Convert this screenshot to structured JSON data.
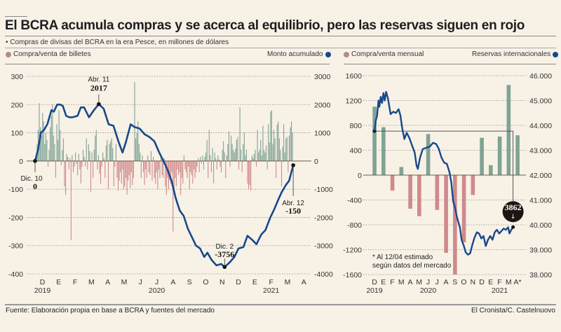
{
  "title": "El BCRA acumula compras y se acerca al equilibrio, pero las reservas siguen en rojo",
  "subtitle": "• Compras de divisas del BCRA en la era Pesce, en millones de dólares",
  "colors": {
    "positive_bar": "#7fa394",
    "negative_bar": "#cf8a8b",
    "line": "#17498a",
    "legend_bar_dot": "#b08c8c",
    "legend_line_dot": "#17498a",
    "background": "#f8f1e6"
  },
  "left_panel": {
    "legend_left": "Compra/venta de billetes",
    "legend_right": "Monto acumulado"
  },
  "right_panel": {
    "legend_left": "Compra/venta mensual",
    "legend_right": "Reservas internacionales"
  },
  "footer": {
    "source": "Fuente:  Elaboración propia en base a BCRA y fuentes del mercado",
    "credit": "El Cronista/C. Castelnuovo"
  },
  "chart_data": [
    {
      "type": "bar+line",
      "title": "Compra/venta de billetes y monto acumulado",
      "left_axis": {
        "ticks": [
          300,
          200,
          100,
          0,
          -100,
          -200,
          -300,
          -400
        ],
        "ylim": [
          -400,
          300
        ],
        "label": "Compra/venta de billetes"
      },
      "right_axis": {
        "ticks": [
          3000,
          2000,
          1000,
          0,
          -1000,
          -2000,
          -3000,
          -4000
        ],
        "ylim": [
          -4000,
          3000
        ],
        "label": "Monto acumulado"
      },
      "x_month_labels": [
        "D",
        "E",
        "F",
        "M",
        "A",
        "M",
        "J",
        "J",
        "A",
        "S",
        "O",
        "N",
        "D",
        "E",
        "F",
        "M",
        "A"
      ],
      "x_year_labels": [
        {
          "label": "2019",
          "month_index": 0
        },
        {
          "label": "2020",
          "month_index": 7
        },
        {
          "label": "2021",
          "month_index": 14
        }
      ],
      "grid": true,
      "bars_daily": [
        60,
        110,
        205,
        120,
        90,
        170,
        140,
        60,
        100,
        75,
        -20,
        40,
        120,
        160,
        200,
        90,
        60,
        -60,
        130,
        75,
        180,
        110,
        -15,
        40,
        80,
        -90,
        -120,
        25,
        15,
        -30,
        10,
        -280,
        20,
        -40,
        -20,
        30,
        -10,
        -50,
        25,
        -30,
        -80,
        -20,
        40,
        15,
        -20,
        80,
        -30,
        60,
        35,
        -110,
        30,
        -60,
        40,
        90,
        110,
        -30,
        20,
        -45,
        -80,
        -20,
        30,
        10,
        -60,
        55,
        75,
        -100,
        60,
        70,
        80,
        45,
        -90,
        -20,
        60,
        -60,
        -105,
        -70,
        -40,
        -80,
        -30,
        -100,
        -90,
        -60,
        -120,
        -70,
        -50,
        -95,
        -40,
        -85,
        -60,
        280,
        80,
        100,
        140,
        60,
        30,
        -60,
        20,
        -40,
        -85,
        -30,
        -60,
        20,
        -40,
        -50,
        35,
        -70,
        15,
        -60,
        -80,
        -40,
        -100,
        -30,
        -60,
        20,
        -50,
        -60,
        10,
        -90,
        -120,
        -60,
        -100,
        -70,
        -80,
        -40,
        -250,
        -120,
        -60,
        -90,
        -30,
        -50,
        -40,
        -120,
        -60,
        -80,
        20,
        -30,
        -40,
        -60,
        -20,
        -100,
        -40,
        -50,
        -80,
        -30,
        -60,
        -40,
        -20,
        10,
        -40,
        15,
        -10,
        20,
        -30,
        15,
        30,
        75,
        -60,
        110,
        20,
        -40,
        45,
        -80,
        30,
        10,
        -30,
        20,
        5,
        -20,
        -40,
        40,
        70,
        30,
        -60,
        20,
        60,
        105,
        -20,
        90,
        60,
        40,
        30,
        45,
        75,
        85,
        -30,
        190,
        40,
        -40,
        60,
        100,
        20,
        40,
        -80,
        -100,
        -85,
        -105,
        20,
        10,
        25,
        40,
        -20,
        110,
        30,
        40,
        75,
        20,
        125,
        40,
        30,
        55,
        -30,
        130,
        65,
        175,
        180,
        60,
        110,
        80,
        -60,
        130,
        140,
        80,
        40,
        -90,
        50,
        130,
        30,
        80,
        85,
        -40,
        90,
        120,
        140,
        100
      ],
      "accumulated_line": [
        {
          "month_pos": 0.0,
          "value": 0
        },
        {
          "month_pos": 0.2,
          "value": 450
        },
        {
          "month_pos": 0.35,
          "value": 1000
        },
        {
          "month_pos": 0.55,
          "value": 1100
        },
        {
          "month_pos": 0.75,
          "value": 1300
        },
        {
          "month_pos": 1.0,
          "value": 1800
        },
        {
          "month_pos": 1.15,
          "value": 1750
        },
        {
          "month_pos": 1.35,
          "value": 2000
        },
        {
          "month_pos": 1.55,
          "value": 2000
        },
        {
          "month_pos": 1.7,
          "value": 1950
        },
        {
          "month_pos": 1.9,
          "value": 1600
        },
        {
          "month_pos": 2.1,
          "value": 1550
        },
        {
          "month_pos": 2.3,
          "value": 1550
        },
        {
          "month_pos": 2.6,
          "value": 1600
        },
        {
          "month_pos": 2.8,
          "value": 1900
        },
        {
          "month_pos": 3.0,
          "value": 1900
        },
        {
          "month_pos": 3.3,
          "value": 1550
        },
        {
          "month_pos": 3.6,
          "value": 1800
        },
        {
          "month_pos": 3.9,
          "value": 2017
        },
        {
          "month_pos": 4.2,
          "value": 1850
        },
        {
          "month_pos": 4.5,
          "value": 1300
        },
        {
          "month_pos": 4.8,
          "value": 1250
        },
        {
          "month_pos": 5.1,
          "value": 700
        },
        {
          "month_pos": 5.35,
          "value": 300
        },
        {
          "month_pos": 5.55,
          "value": 650
        },
        {
          "month_pos": 5.85,
          "value": 1300
        },
        {
          "month_pos": 6.1,
          "value": 1200
        },
        {
          "month_pos": 6.4,
          "value": 1150
        },
        {
          "month_pos": 6.7,
          "value": 950
        },
        {
          "month_pos": 7.0,
          "value": 850
        },
        {
          "month_pos": 7.3,
          "value": 700
        },
        {
          "month_pos": 7.6,
          "value": 300
        },
        {
          "month_pos": 7.9,
          "value": -50
        },
        {
          "month_pos": 8.1,
          "value": -300
        },
        {
          "month_pos": 8.35,
          "value": -700
        },
        {
          "month_pos": 8.6,
          "value": -1300
        },
        {
          "month_pos": 8.85,
          "value": -1750
        },
        {
          "month_pos": 9.1,
          "value": -1950
        },
        {
          "month_pos": 9.35,
          "value": -2400
        },
        {
          "month_pos": 9.6,
          "value": -2700
        },
        {
          "month_pos": 9.85,
          "value": -3000
        },
        {
          "month_pos": 10.1,
          "value": -3100
        },
        {
          "month_pos": 10.35,
          "value": -3400
        },
        {
          "month_pos": 10.55,
          "value": -3250
        },
        {
          "month_pos": 10.8,
          "value": -3500
        },
        {
          "month_pos": 11.1,
          "value": -3700
        },
        {
          "month_pos": 11.4,
          "value": -3650
        },
        {
          "month_pos": 11.6,
          "value": -3756
        },
        {
          "month_pos": 11.9,
          "value": -3600
        },
        {
          "month_pos": 12.2,
          "value": -3400
        },
        {
          "month_pos": 12.45,
          "value": -3100
        },
        {
          "month_pos": 12.75,
          "value": -3050
        },
        {
          "month_pos": 13.0,
          "value": -2650
        },
        {
          "month_pos": 13.3,
          "value": -2800
        },
        {
          "month_pos": 13.55,
          "value": -2950
        },
        {
          "month_pos": 13.85,
          "value": -2600
        },
        {
          "month_pos": 14.1,
          "value": -2450
        },
        {
          "month_pos": 14.4,
          "value": -2000
        },
        {
          "month_pos": 14.65,
          "value": -1700
        },
        {
          "month_pos": 14.9,
          "value": -1350
        },
        {
          "month_pos": 15.1,
          "value": -1100
        },
        {
          "month_pos": 15.35,
          "value": -850
        },
        {
          "month_pos": 15.55,
          "value": -700
        },
        {
          "month_pos": 15.8,
          "value": -150
        }
      ],
      "annotations": [
        {
          "label": "Dic. 10",
          "value_label": "0",
          "month_pos": 0.0,
          "value": 0
        },
        {
          "label": "Abr. 11",
          "value_label": "2017",
          "month_pos": 3.9,
          "value": 2017
        },
        {
          "label": "Dic. 2",
          "value_label": "-3756",
          "month_pos": 11.6,
          "value": -3756
        },
        {
          "label": "Abr. 12",
          "value_label": "-150",
          "month_pos": 15.8,
          "value": -150
        }
      ]
    },
    {
      "type": "bar+line",
      "title": "Compra/venta mensual y reservas internacionales",
      "left_axis": {
        "ticks": [
          1600,
          1200,
          800,
          400,
          0,
          -400,
          -800,
          -1200,
          -1600
        ],
        "ylim": [
          -1600,
          1600
        ],
        "label": "Compra/venta mensual"
      },
      "right_axis": {
        "ticks": [
          "46.000",
          "45.000",
          "44.000",
          "43.000",
          "42.000",
          "41.000",
          "40.000",
          "39.000",
          "38.000"
        ],
        "ylim": [
          38000,
          46000
        ],
        "label": "Reservas internacionales"
      },
      "categories": [
        "D",
        "E",
        "F",
        "M",
        "A",
        "M",
        "J",
        "J",
        "A",
        "S",
        "O",
        "N",
        "D",
        "E",
        "F",
        "M",
        "A*"
      ],
      "x_year_labels": [
        {
          "label": "2019",
          "month_index": 0
        },
        {
          "label": "2020",
          "month_index": 6
        },
        {
          "label": "2021",
          "month_index": 14
        }
      ],
      "values": [
        1100,
        770,
        -250,
        130,
        -540,
        -660,
        660,
        -560,
        -1250,
        -1600,
        -1080,
        -320,
        600,
        160,
        620,
        1450,
        640
      ],
      "reserves_line": [
        {
          "month_pos": 0.0,
          "value": 43770
        },
        {
          "month_pos": 0.15,
          "value": 44200
        },
        {
          "month_pos": 0.3,
          "value": 44400
        },
        {
          "month_pos": 0.45,
          "value": 45000
        },
        {
          "month_pos": 0.55,
          "value": 44750
        },
        {
          "month_pos": 0.7,
          "value": 45150
        },
        {
          "month_pos": 0.85,
          "value": 44900
        },
        {
          "month_pos": 1.0,
          "value": 45300
        },
        {
          "month_pos": 1.15,
          "value": 45000
        },
        {
          "month_pos": 1.3,
          "value": 45350
        },
        {
          "month_pos": 1.5,
          "value": 45100
        },
        {
          "month_pos": 1.8,
          "value": 44450
        },
        {
          "month_pos": 2.1,
          "value": 44550
        },
        {
          "month_pos": 2.4,
          "value": 44500
        },
        {
          "month_pos": 2.7,
          "value": 44650
        },
        {
          "month_pos": 2.9,
          "value": 44400
        },
        {
          "month_pos": 3.1,
          "value": 43900
        },
        {
          "month_pos": 3.35,
          "value": 43450
        },
        {
          "month_pos": 3.6,
          "value": 43700
        },
        {
          "month_pos": 3.9,
          "value": 43500
        },
        {
          "month_pos": 4.2,
          "value": 43200
        },
        {
          "month_pos": 4.5,
          "value": 42900
        },
        {
          "month_pos": 4.7,
          "value": 42400
        },
        {
          "month_pos": 4.85,
          "value": 42250
        },
        {
          "month_pos": 5.1,
          "value": 42700
        },
        {
          "month_pos": 5.4,
          "value": 43050
        },
        {
          "month_pos": 5.8,
          "value": 43100
        },
        {
          "month_pos": 6.2,
          "value": 43150
        },
        {
          "month_pos": 6.55,
          "value": 43300
        },
        {
          "month_pos": 6.9,
          "value": 43250
        },
        {
          "month_pos": 7.2,
          "value": 43050
        },
        {
          "month_pos": 7.5,
          "value": 42700
        },
        {
          "month_pos": 7.8,
          "value": 42500
        },
        {
          "month_pos": 8.1,
          "value": 42450
        },
        {
          "month_pos": 8.4,
          "value": 42100
        },
        {
          "month_pos": 8.6,
          "value": 41700
        },
        {
          "month_pos": 8.8,
          "value": 40950
        },
        {
          "month_pos": 9.0,
          "value": 40700
        },
        {
          "month_pos": 9.2,
          "value": 40350
        },
        {
          "month_pos": 9.35,
          "value": 40150
        },
        {
          "month_pos": 9.55,
          "value": 39900
        },
        {
          "month_pos": 9.75,
          "value": 39400
        },
        {
          "month_pos": 10.0,
          "value": 39150
        },
        {
          "month_pos": 10.2,
          "value": 38900
        },
        {
          "month_pos": 10.45,
          "value": 38800
        },
        {
          "month_pos": 10.7,
          "value": 38850
        },
        {
          "month_pos": 10.95,
          "value": 39200
        },
        {
          "month_pos": 11.2,
          "value": 39500
        },
        {
          "month_pos": 11.45,
          "value": 39700
        },
        {
          "month_pos": 11.7,
          "value": 39650
        },
        {
          "month_pos": 11.95,
          "value": 39450
        },
        {
          "month_pos": 12.2,
          "value": 39550
        },
        {
          "month_pos": 12.45,
          "value": 39150
        },
        {
          "month_pos": 12.7,
          "value": 39400
        },
        {
          "month_pos": 12.95,
          "value": 39550
        },
        {
          "month_pos": 13.2,
          "value": 39400
        },
        {
          "month_pos": 13.45,
          "value": 39700
        },
        {
          "month_pos": 13.7,
          "value": 39800
        },
        {
          "month_pos": 13.95,
          "value": 39650
        },
        {
          "month_pos": 14.2,
          "value": 39750
        },
        {
          "month_pos": 14.45,
          "value": 39850
        },
        {
          "month_pos": 14.7,
          "value": 39800
        },
        {
          "month_pos": 14.95,
          "value": 39900
        },
        {
          "month_pos": 15.1,
          "value": 39650
        },
        {
          "month_pos": 15.3,
          "value": 39800
        },
        {
          "month_pos": 15.5,
          "value": 39910
        }
      ],
      "reference_start_value": 43770,
      "difference_badge": "3862",
      "difference_arrow": "↓",
      "footnote_lines": [
        "* Al 12/04 estimado",
        "según datos del mercado"
      ]
    }
  ]
}
